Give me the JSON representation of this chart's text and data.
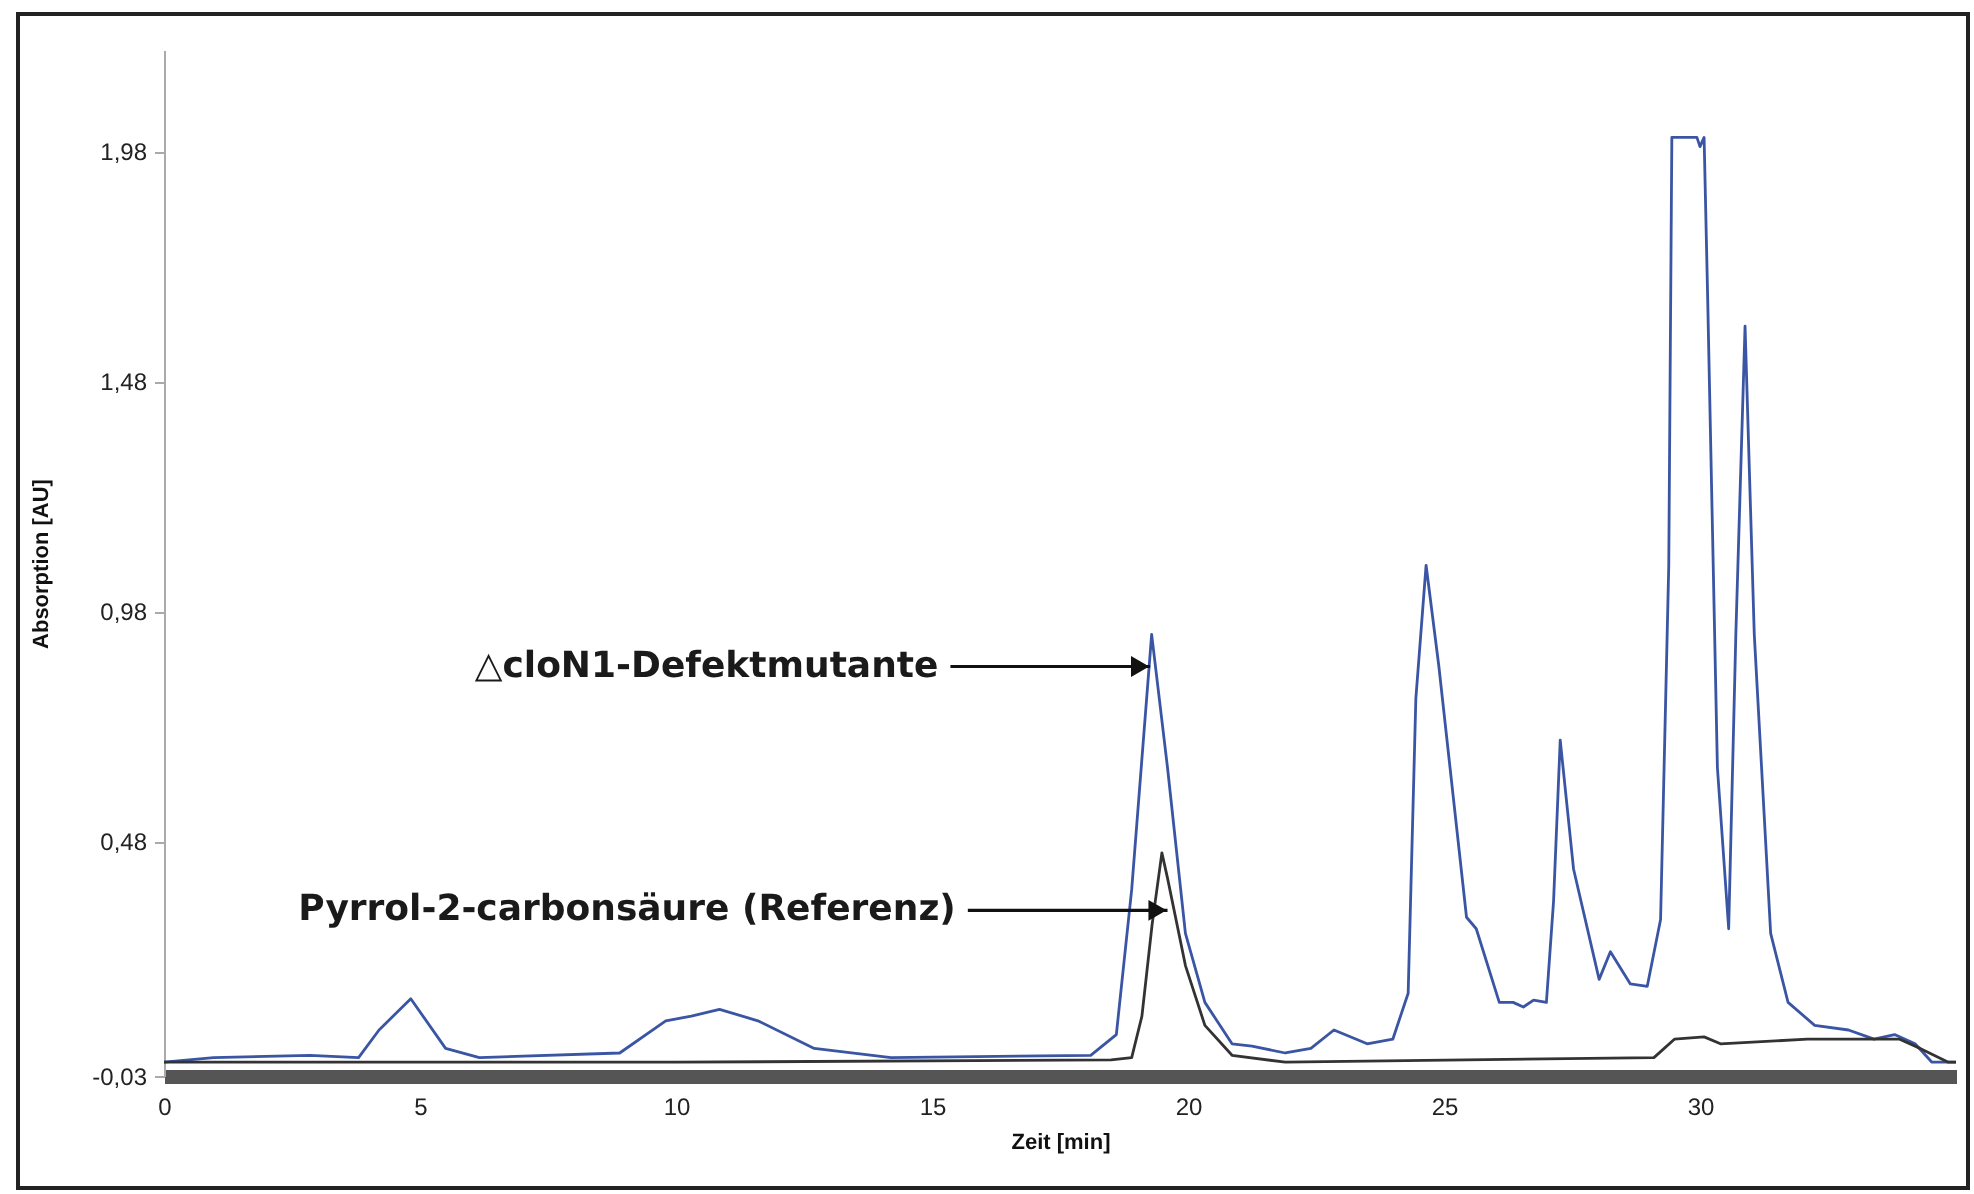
{
  "chart_data": {
    "type": "line",
    "xlabel": "Zeit [min]",
    "ylabel": "Absorption [AU]",
    "xlim": [
      0,
      35
    ],
    "xticks": [
      0,
      5,
      10,
      15,
      20,
      25,
      30
    ],
    "ylim": [
      -0.03,
      2.2
    ],
    "yticks": [
      {
        "value": -0.03,
        "label": "-0,03"
      },
      {
        "value": 0.48,
        "label": "0,48"
      },
      {
        "value": 0.98,
        "label": "0,98"
      },
      {
        "value": 1.48,
        "label": "1,48"
      },
      {
        "value": 1.98,
        "label": "1,98"
      }
    ],
    "grid": false,
    "line_style": "solid",
    "marker": "none",
    "annotations": [
      {
        "text": "△cloN1-Defektmutante",
        "x": 19.26,
        "y": 0.86
      },
      {
        "text": "Pyrrol-2-carbonsäure (Referenz)",
        "x": 19.6,
        "y": 0.33
      }
    ],
    "series": [
      {
        "color": "#3a55a4",
        "x": [
          0,
          0.97,
          2.85,
          3.8,
          4.2,
          4.82,
          5.5,
          6.16,
          8.9,
          9.8,
          10.3,
          10.85,
          11.6,
          12.7,
          14.2,
          18.1,
          18.6,
          18.9,
          19.29,
          19.6,
          19.95,
          20.33,
          20.86,
          21.25,
          21.9,
          22.4,
          22.85,
          23.5,
          24.0,
          24.3,
          24.45,
          24.65,
          24.9,
          25.44,
          25.63,
          26.08,
          26.35,
          26.55,
          26.75,
          27.0,
          27.14,
          27.27,
          27.53,
          28.03,
          28.25,
          28.64,
          28.97,
          29.23,
          29.39,
          29.45,
          29.94,
          30.0,
          30.08,
          30.15,
          30.34,
          30.56,
          30.7,
          30.88,
          31.06,
          31.38,
          31.72,
          32.24,
          32.9,
          33.4,
          33.8,
          34.2,
          34.53,
          35.0
        ],
        "values": [
          0.0,
          0.01,
          0.015,
          0.01,
          0.07,
          0.138,
          0.03,
          0.01,
          0.02,
          0.09,
          0.1,
          0.115,
          0.09,
          0.03,
          0.01,
          0.015,
          0.06,
          0.375,
          0.93,
          0.64,
          0.28,
          0.13,
          0.04,
          0.035,
          0.02,
          0.03,
          0.07,
          0.04,
          0.05,
          0.15,
          0.79,
          1.08,
          0.86,
          0.315,
          0.29,
          0.13,
          0.13,
          0.12,
          0.135,
          0.13,
          0.35,
          0.7,
          0.42,
          0.18,
          0.24,
          0.17,
          0.165,
          0.31,
          1.08,
          2.01,
          2.01,
          1.99,
          2.01,
          1.66,
          0.64,
          0.29,
          0.93,
          1.6,
          0.93,
          0.28,
          0.13,
          0.08,
          0.07,
          0.05,
          0.06,
          0.04,
          0.0,
          0.0
        ]
      },
      {
        "color": "#333333",
        "x": [
          0,
          10,
          18.5,
          18.9,
          19.1,
          19.3,
          19.49,
          19.6,
          19.95,
          20.33,
          20.86,
          21.9,
          29.1,
          29.5,
          30.08,
          30.4,
          32.1,
          33.9,
          34.3,
          34.85,
          35.0
        ],
        "values": [
          0.0,
          0.0,
          0.005,
          0.01,
          0.1,
          0.3,
          0.455,
          0.4,
          0.21,
          0.08,
          0.015,
          0.0,
          0.01,
          0.05,
          0.055,
          0.04,
          0.05,
          0.05,
          0.03,
          0.0,
          0.0
        ]
      }
    ]
  }
}
